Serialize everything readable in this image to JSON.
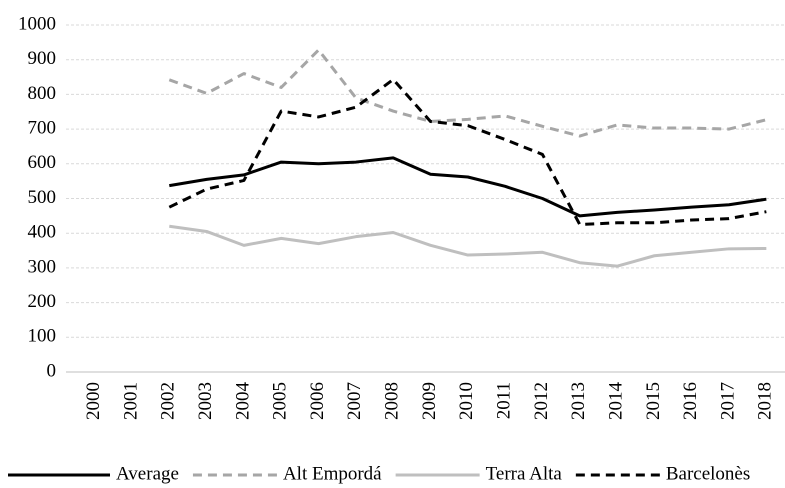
{
  "chart_data": {
    "type": "line",
    "categories": [
      "2000",
      "2001",
      "2002",
      "2003",
      "2004",
      "2005",
      "2006",
      "2007",
      "2008",
      "2009",
      "2010",
      "2011",
      "2012",
      "2013",
      "2014",
      "2015",
      "2016",
      "2017",
      "2018"
    ],
    "series": [
      {
        "name": "Average",
        "color": "#000000",
        "dashed": false,
        "values": [
          null,
          null,
          537,
          555,
          568,
          605,
          600,
          605,
          617,
          570,
          562,
          535,
          500,
          450,
          460,
          467,
          475,
          482,
          498
        ]
      },
      {
        "name": "Alt Empordá",
        "color": "#a6a6a6",
        "dashed": true,
        "values": [
          null,
          null,
          842,
          803,
          860,
          820,
          928,
          790,
          752,
          722,
          728,
          738,
          708,
          680,
          712,
          703,
          703,
          700,
          727
        ]
      },
      {
        "name": "Terra Alta",
        "color": "#bfbfbf",
        "dashed": false,
        "values": [
          null,
          null,
          420,
          405,
          365,
          385,
          370,
          390,
          402,
          365,
          337,
          340,
          345,
          315,
          305,
          335,
          345,
          355,
          356
        ]
      },
      {
        "name": "Barcelonès",
        "color": "#000000",
        "dashed": true,
        "values": [
          null,
          null,
          475,
          527,
          552,
          752,
          735,
          763,
          843,
          722,
          710,
          670,
          627,
          425,
          430,
          430,
          438,
          442,
          462
        ]
      }
    ],
    "ylim": [
      0,
      1000
    ],
    "yticks": [
      0,
      100,
      200,
      300,
      400,
      500,
      600,
      700,
      800,
      900,
      1000
    ],
    "grid": true,
    "legend": "bottom"
  }
}
